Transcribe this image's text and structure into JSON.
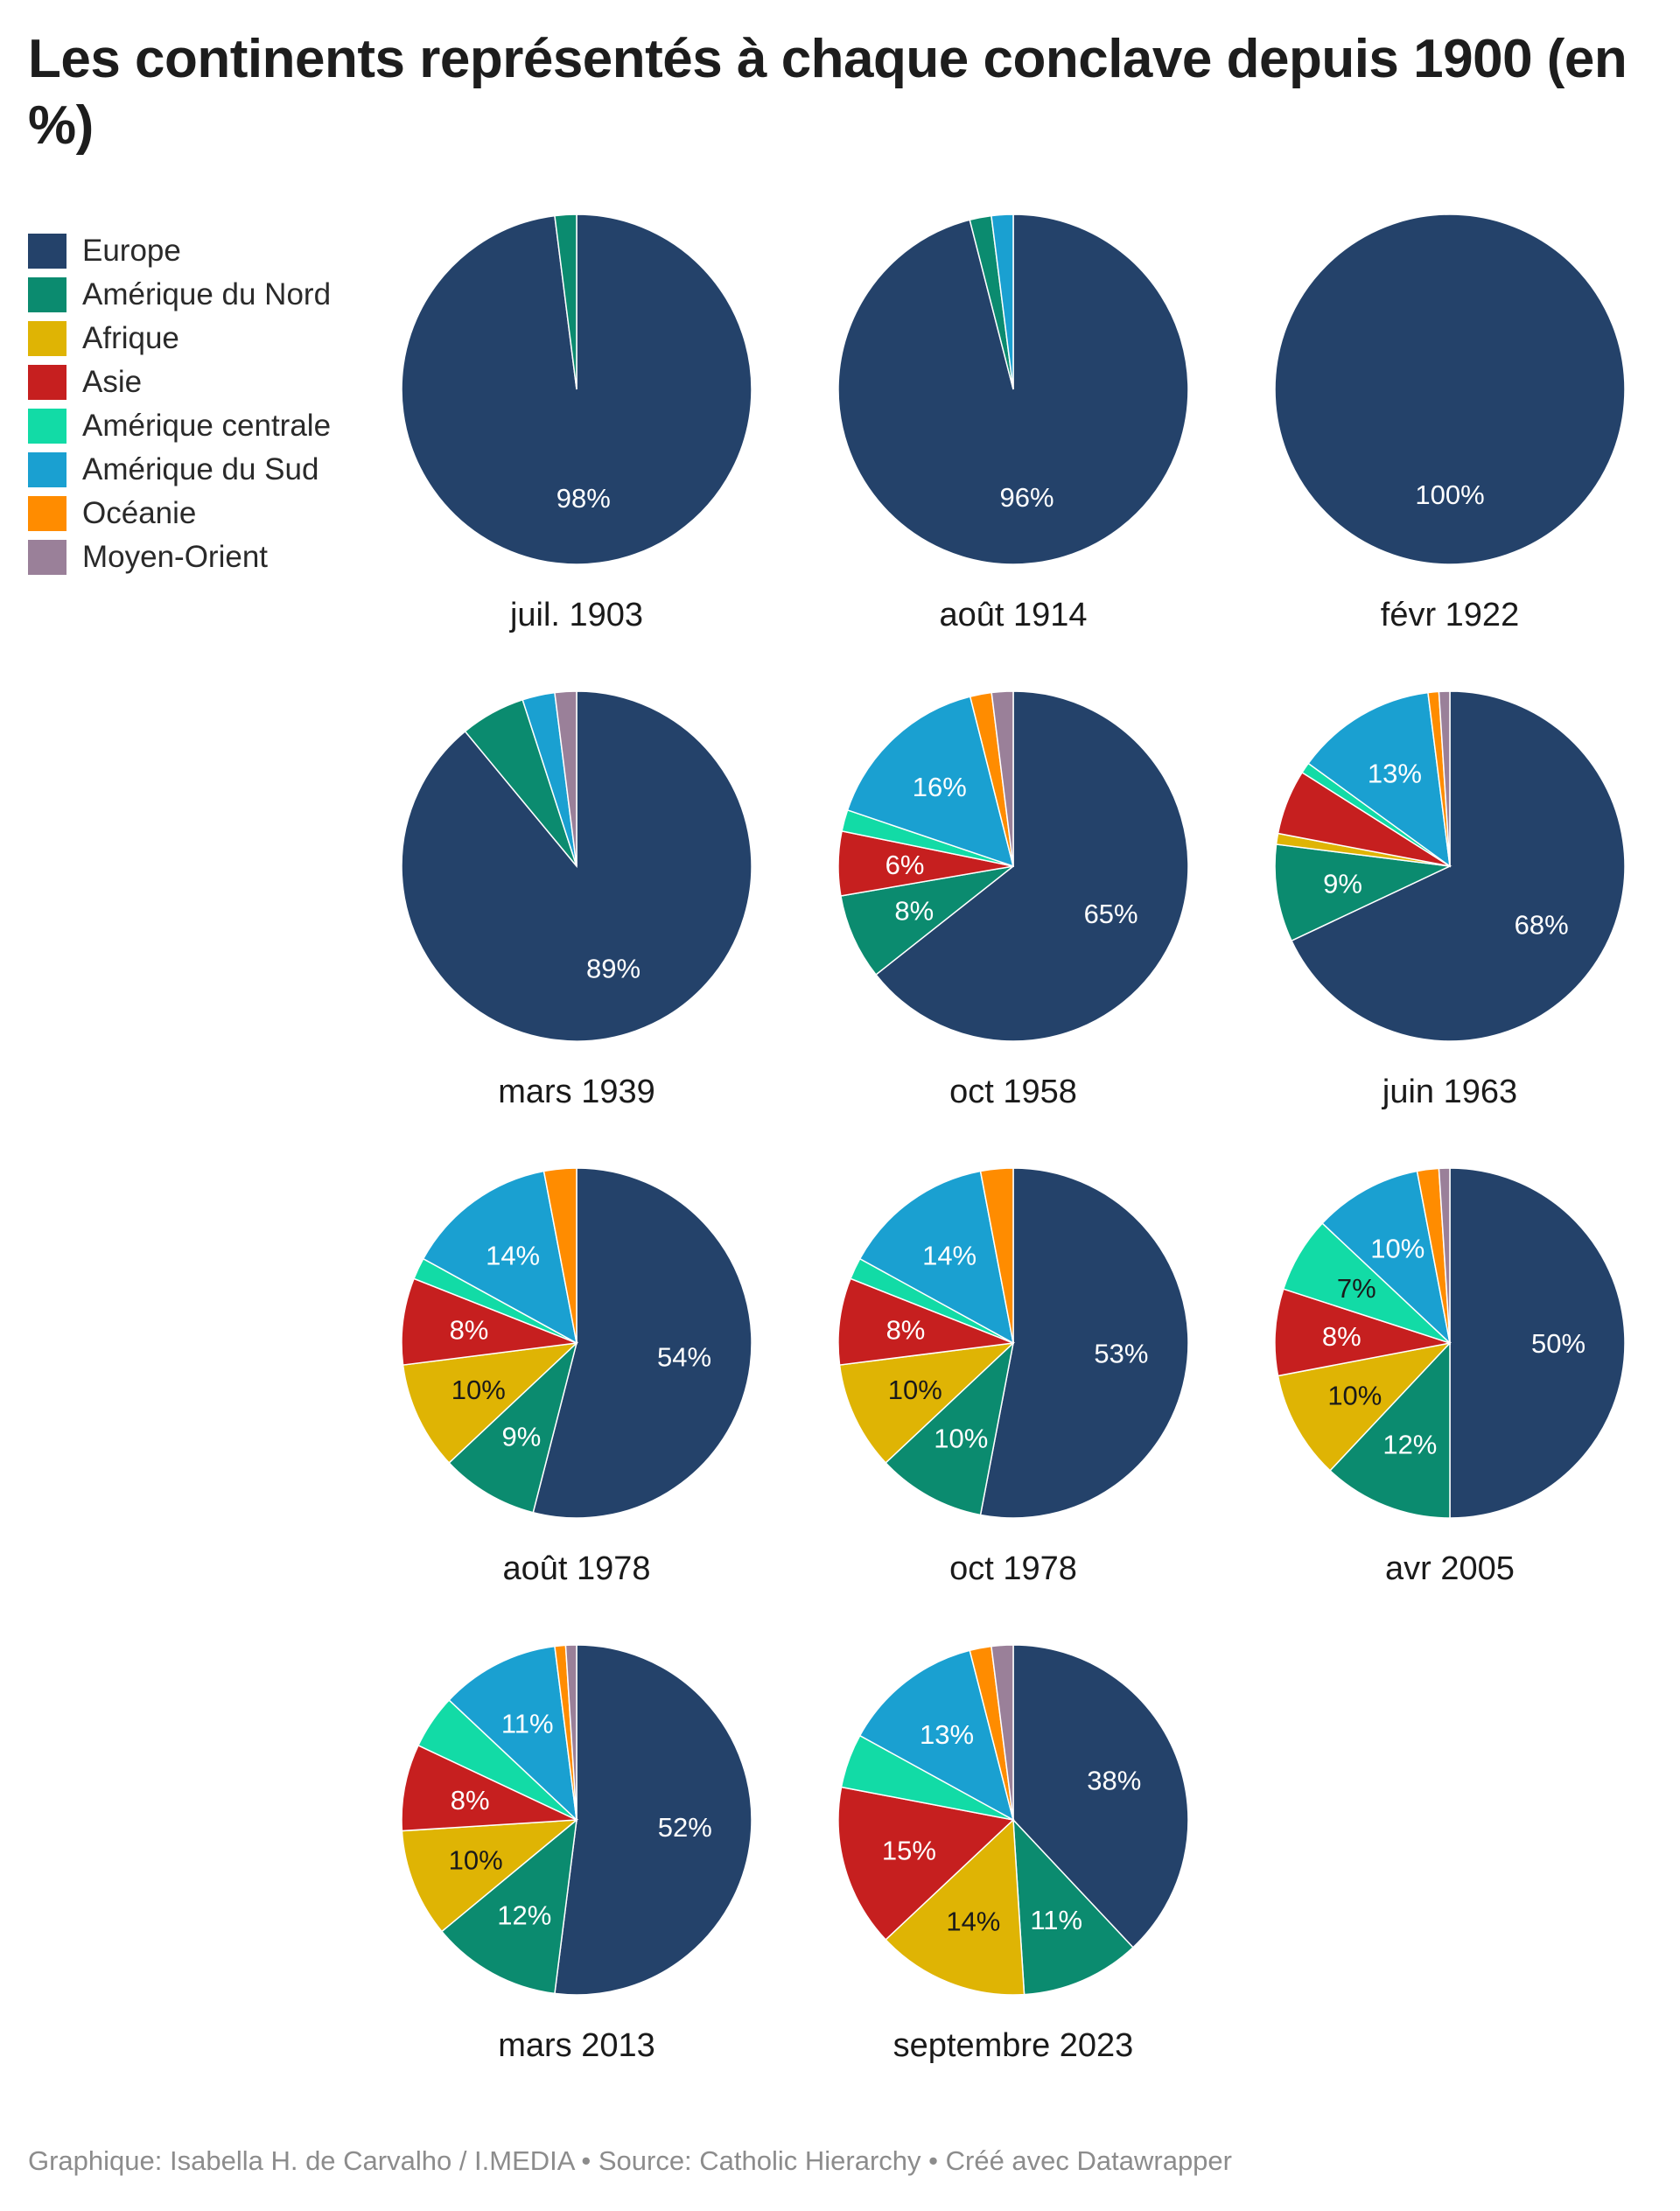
{
  "title": "Les continents représentés à chaque conclave depuis 1900 (en %)",
  "source": "Graphique: Isabella H. de Carvalho / I.MEDIA • Source: Catholic Hierarchy • Créé avec Datawrapper",
  "legend": [
    {
      "name": "Europe",
      "color": "#24426a"
    },
    {
      "name": "Amérique du Nord",
      "color": "#0b8b6f"
    },
    {
      "name": "Afrique",
      "color": "#dfb404"
    },
    {
      "name": "Asie",
      "color": "#c61f1f"
    },
    {
      "name": "Amérique centrale",
      "color": "#12dba6"
    },
    {
      "name": "Amérique du Sud",
      "color": "#1aa0d1"
    },
    {
      "name": "Océanie",
      "color": "#ff8c00"
    },
    {
      "name": "Moyen-Orient",
      "color": "#9a8099"
    }
  ],
  "chart_data": [
    {
      "type": "pie",
      "title": "juil. 1903",
      "categories": [
        "Europe",
        "Amérique du Nord"
      ],
      "values": [
        98,
        2
      ],
      "labels": [
        "98%",
        ""
      ]
    },
    {
      "type": "pie",
      "title": "août 1914",
      "categories": [
        "Europe",
        "Amérique du Nord",
        "Amérique du Sud"
      ],
      "values": [
        96,
        2,
        2
      ],
      "labels": [
        "96%",
        "",
        ""
      ]
    },
    {
      "type": "pie",
      "title": "févr 1922",
      "categories": [
        "Europe"
      ],
      "values": [
        100
      ],
      "labels": [
        "100%"
      ]
    },
    {
      "type": "pie",
      "title": "mars 1939",
      "categories": [
        "Europe",
        "Amérique du Nord",
        "Amérique du Sud",
        "Moyen-Orient"
      ],
      "values": [
        89,
        6,
        3,
        2
      ],
      "labels": [
        "89%",
        "",
        "",
        ""
      ]
    },
    {
      "type": "pie",
      "title": "oct 1958",
      "categories": [
        "Europe",
        "Amérique du Nord",
        "Asie",
        "Amérique centrale",
        "Amérique du Sud",
        "Océanie",
        "Moyen-Orient"
      ],
      "values": [
        65,
        8,
        6,
        2,
        16,
        2,
        2
      ],
      "labels": [
        "65%",
        "8%",
        "6%",
        "",
        "16%",
        "",
        ""
      ]
    },
    {
      "type": "pie",
      "title": "juin 1963",
      "categories": [
        "Europe",
        "Amérique du Nord",
        "Afrique",
        "Asie",
        "Amérique centrale",
        "Amérique du Sud",
        "Océanie",
        "Moyen-Orient"
      ],
      "values": [
        68,
        9,
        1,
        6,
        1,
        13,
        1,
        1
      ],
      "labels": [
        "68%",
        "9%",
        "",
        "",
        "",
        "13%",
        "",
        ""
      ]
    },
    {
      "type": "pie",
      "title": "août 1978",
      "categories": [
        "Europe",
        "Amérique du Nord",
        "Afrique",
        "Asie",
        "Amérique centrale",
        "Amérique du Sud",
        "Océanie"
      ],
      "values": [
        54,
        9,
        10,
        8,
        2,
        14,
        3
      ],
      "labels": [
        "54%",
        "9%",
        "10%",
        "8%",
        "",
        "14%",
        ""
      ]
    },
    {
      "type": "pie",
      "title": "oct 1978",
      "categories": [
        "Europe",
        "Amérique du Nord",
        "Afrique",
        "Asie",
        "Amérique centrale",
        "Amérique du Sud",
        "Océanie"
      ],
      "values": [
        53,
        10,
        10,
        8,
        2,
        14,
        3
      ],
      "labels": [
        "53%",
        "10%",
        "10%",
        "8%",
        "",
        "14%",
        ""
      ]
    },
    {
      "type": "pie",
      "title": "avr 2005",
      "categories": [
        "Europe",
        "Amérique du Nord",
        "Afrique",
        "Asie",
        "Amérique centrale",
        "Amérique du Sud",
        "Océanie",
        "Moyen-Orient"
      ],
      "values": [
        50,
        12,
        10,
        8,
        7,
        10,
        2,
        1
      ],
      "labels": [
        "50%",
        "12%",
        "10%",
        "8%",
        "7%",
        "10%",
        "",
        ""
      ]
    },
    {
      "type": "pie",
      "title": "mars 2013",
      "categories": [
        "Europe",
        "Amérique du Nord",
        "Afrique",
        "Asie",
        "Amérique centrale",
        "Amérique du Sud",
        "Océanie",
        "Moyen-Orient"
      ],
      "values": [
        52,
        12,
        10,
        8,
        5,
        11,
        1,
        1
      ],
      "labels": [
        "52%",
        "12%",
        "10%",
        "8%",
        "",
        "11%",
        "",
        ""
      ]
    },
    {
      "type": "pie",
      "title": "septembre 2023",
      "categories": [
        "Europe",
        "Amérique du Nord",
        "Afrique",
        "Asie",
        "Amérique centrale",
        "Amérique du Sud",
        "Océanie",
        "Moyen-Orient"
      ],
      "values": [
        38,
        11,
        14,
        15,
        5,
        13,
        2,
        2
      ],
      "labels": [
        "38%",
        "11%",
        "14%",
        "15%",
        "",
        "13%",
        "",
        ""
      ]
    }
  ]
}
